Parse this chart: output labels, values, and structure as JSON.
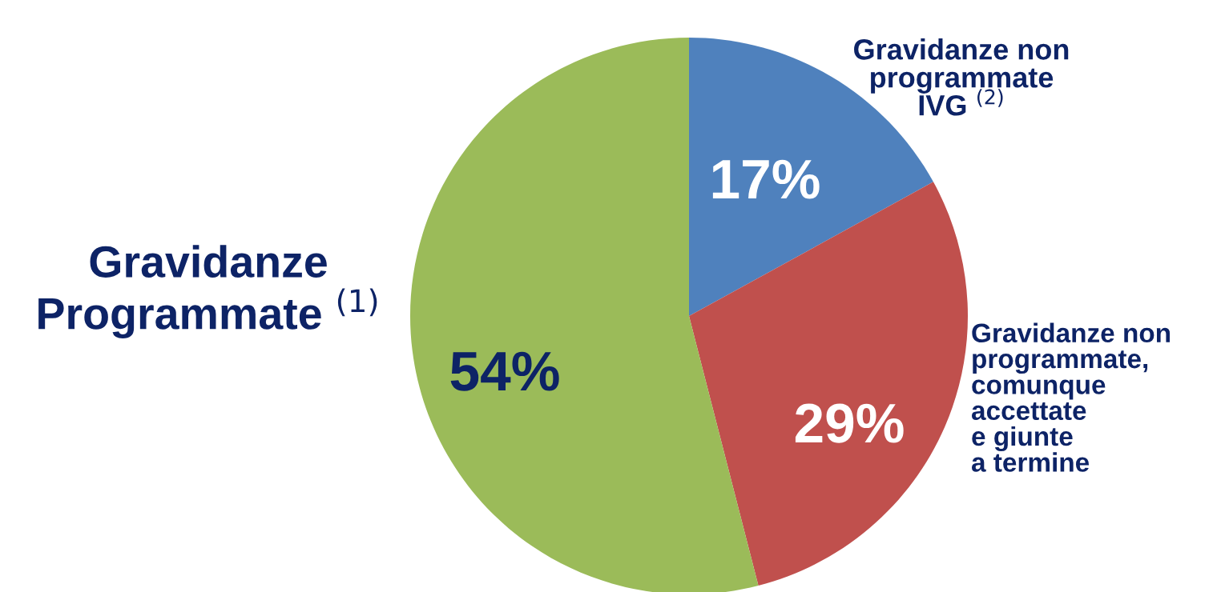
{
  "chart_data": {
    "type": "pie",
    "categories": [
      "Gravidanze non\nprogrammate\nIVG $^{(2)}$",
      "Gravidanze non\nprogrammate,\ncomunque\naccettate\ne giunte\na termine",
      "Gravidanze\nProgrammate $^{(1)}$"
    ],
    "values": [
      17,
      29,
      54
    ],
    "colors": [
      "#4f81bd",
      "#c0504d",
      "#9bbb59"
    ],
    "value_labels": [
      "17%",
      "29%",
      "54%"
    ],
    "legend": false
  }
}
